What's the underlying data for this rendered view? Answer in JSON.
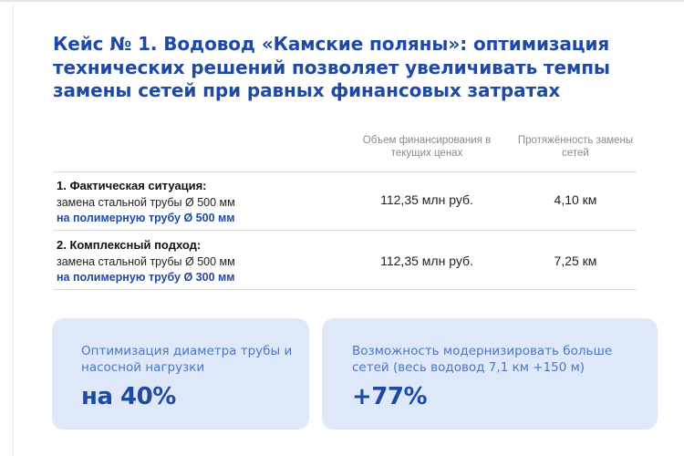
{
  "title": "Кейс № 1. Водовод «Камские поляны»: оптимизация технических решений позволяет увеличивать темпы замены сетей при равных финансовых затратах",
  "columns": {
    "funding": "Объем финансирования в текущих ценах",
    "length": "Протяжённость замены сетей"
  },
  "rows": [
    {
      "heading": "1. Фактическая ситуация:",
      "line": "замена стальной трубы Ø 500 мм",
      "highlight": "на полимерную трубу Ø 500 мм",
      "funding": "112,35 млн руб.",
      "length": "4,10 км"
    },
    {
      "heading": "2. Комплексный подход:",
      "line": "замена стальной трубы Ø 500 мм",
      "highlight": "на полимерную трубу Ø 300 мм",
      "funding": "112,35 млн руб.",
      "length": "7,25 км"
    }
  ],
  "cards": [
    {
      "label": "Оптимизация диаметра трубы и насосной нагрузки",
      "value": "на 40%"
    },
    {
      "label": "Возможность модернизировать больше сетей (весь водовод 7,1 км +150 м)",
      "value": "+77%"
    }
  ],
  "colors": {
    "accent": "#1e4aa6",
    "card_bg": "#dfe8f8",
    "card_label": "#4a76c8",
    "muted": "#8a8a8a"
  }
}
